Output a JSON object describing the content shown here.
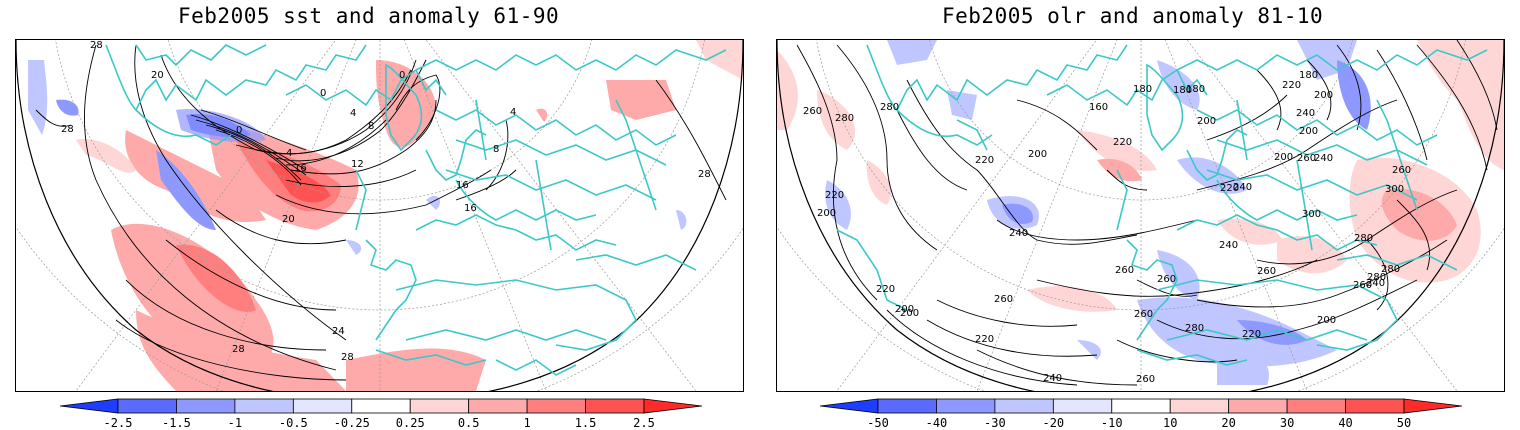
{
  "left_map": {
    "title": "Feb2005 sst and anomaly 61-90",
    "contour_labels": [
      "28",
      "28",
      "20",
      "0",
      "0",
      "4",
      "4",
      "8",
      "12",
      "16",
      "0",
      "16",
      "16",
      "20",
      "24",
      "28",
      "28",
      "28",
      "4",
      "8"
    ],
    "colorbar": {
      "labels": [
        "-2.5",
        "-1.5",
        "-1",
        "-0.5",
        "-0.25",
        "0.25",
        "0.5",
        "1",
        "1.5",
        "2.5"
      ],
      "colors": [
        "#1f3dff",
        "#5a6bff",
        "#8e99ff",
        "#c0c6ff",
        "#e4e6ff",
        "#ffffff",
        "#ffd6d6",
        "#ffaaaa",
        "#ff7f7f",
        "#ff5252",
        "#ff2a2a"
      ]
    }
  },
  "right_map": {
    "title": "Feb2005 olr and anomaly 81-10",
    "contour_labels": [
      "260",
      "280",
      "280",
      "220",
      "200",
      "220",
      "200",
      "180",
      "160",
      "180",
      "180",
      "180",
      "200",
      "220",
      "200",
      "240",
      "220",
      "200",
      "200",
      "240",
      "220",
      "240",
      "260",
      "260",
      "260",
      "240",
      "260",
      "300",
      "300",
      "280",
      "280",
      "260",
      "240",
      "220",
      "200",
      "200",
      "280",
      "260",
      "260",
      "220",
      "200",
      "260",
      "220",
      "240",
      "260",
      "240",
      "280"
    ],
    "colorbar": {
      "labels": [
        "-50",
        "-40",
        "-30",
        "-20",
        "-10",
        "10",
        "20",
        "30",
        "40",
        "50"
      ],
      "colors": [
        "#1f3dff",
        "#5a6bff",
        "#8e99ff",
        "#c0c6ff",
        "#e4e6ff",
        "#ffffff",
        "#ffd6d6",
        "#ffaaaa",
        "#ff7f7f",
        "#ff5252",
        "#ff2a2a"
      ]
    }
  },
  "colors": {
    "coastline": "#3cc8c8",
    "contour": "#000000",
    "grid": "#9a9a9a"
  }
}
